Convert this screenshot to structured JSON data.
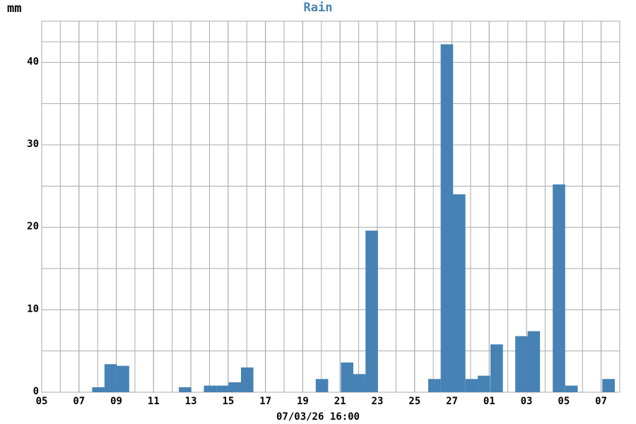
{
  "chart_data": {
    "type": "bar",
    "title": "Rain",
    "ylabel": "mm",
    "xlabel": "07/03/26 16:00",
    "color": "#4682b4",
    "x": [
      3.04,
      3.7,
      4.36,
      7.69,
      9.03,
      9.7,
      10.36,
      11.02,
      15.03,
      16.38,
      17.04,
      17.7,
      21.06,
      21.73,
      22.39,
      23.06,
      23.72,
      24.4,
      25.73,
      26.39,
      27.74,
      28.41,
      30.4
    ],
    "values": [
      0.6,
      3.4,
      3.2,
      0.6,
      0.8,
      0.8,
      1.2,
      3.0,
      1.6,
      3.6,
      2.2,
      19.6,
      1.6,
      42.2,
      24.0,
      1.6,
      2.0,
      5.8,
      6.8,
      7.4,
      25.2,
      0.8,
      1.6
    ],
    "xlim": [
      0,
      31
    ],
    "xticks": [
      {
        "value": 0,
        "label": "05"
      },
      {
        "value": 2,
        "label": "07"
      },
      {
        "value": 4,
        "label": "09"
      },
      {
        "value": 6,
        "label": "11"
      },
      {
        "value": 8,
        "label": "13"
      },
      {
        "value": 10,
        "label": "15"
      },
      {
        "value": 12,
        "label": "17"
      },
      {
        "value": 14,
        "label": "19"
      },
      {
        "value": 16,
        "label": "21"
      },
      {
        "value": 18,
        "label": "23"
      },
      {
        "value": 20,
        "label": "25"
      },
      {
        "value": 22,
        "label": "27"
      },
      {
        "value": 24,
        "label": "01"
      },
      {
        "value": 26,
        "label": "03"
      },
      {
        "value": 28,
        "label": "05"
      },
      {
        "value": 30,
        "label": "07"
      }
    ],
    "ylim": [
      0,
      45
    ],
    "yticks": [
      0,
      10,
      20,
      30,
      40
    ],
    "grid": true
  }
}
